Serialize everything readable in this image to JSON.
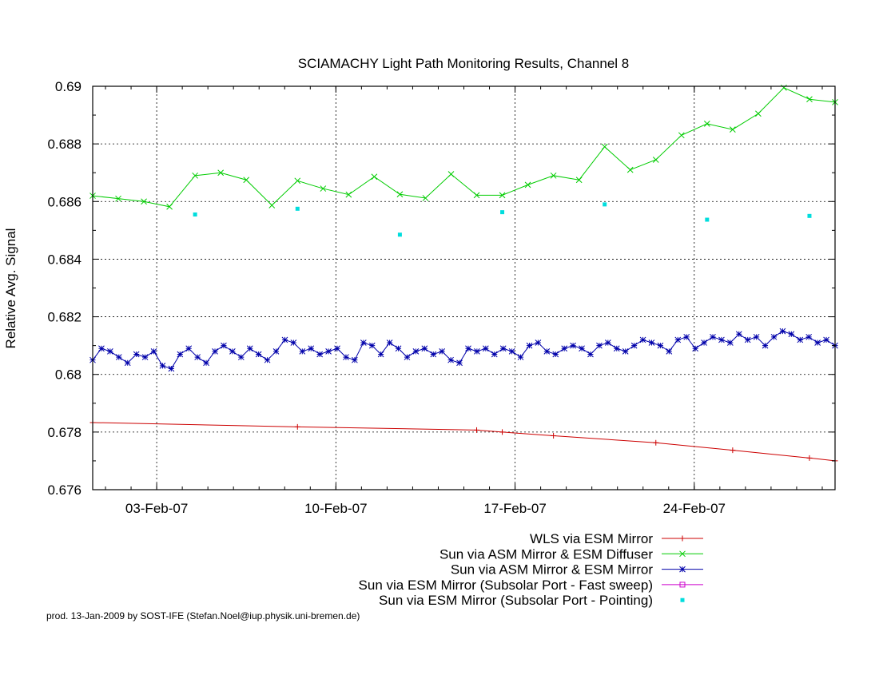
{
  "chart_data": {
    "type": "line",
    "title": "SCIAMACHY Light Path Monitoring Results, Channel 8",
    "xlabel": "",
    "ylabel": "Relative Avg. Signal",
    "xlim": [
      "2007-01-31T12:00",
      "2007-03-01T12:00"
    ],
    "ylim": [
      0.676,
      0.69
    ],
    "grid": true,
    "legend_position": "bottom-right, below plot",
    "x_ticks": [
      {
        "date": "2007-02-03",
        "label": "03-Feb-07"
      },
      {
        "date": "2007-02-10",
        "label": "10-Feb-07"
      },
      {
        "date": "2007-02-17",
        "label": "17-Feb-07"
      },
      {
        "date": "2007-02-24",
        "label": "24-Feb-07"
      }
    ],
    "y_ticks": [
      {
        "value": 0.676,
        "label": "0.676"
      },
      {
        "value": 0.678,
        "label": "0.678"
      },
      {
        "value": 0.68,
        "label": "0.68"
      },
      {
        "value": 0.682,
        "label": "0.682"
      },
      {
        "value": 0.684,
        "label": "0.684"
      },
      {
        "value": 0.686,
        "label": "0.686"
      },
      {
        "value": 0.688,
        "label": "0.688"
      },
      {
        "value": 0.69,
        "label": "0.69"
      }
    ],
    "series": [
      {
        "name": "WLS via ESM Mirror",
        "color": "#cc0000",
        "marker": "plus",
        "points": [
          [
            "2007-01-31T12:00",
            0.67833
          ],
          [
            "2007-02-08T12:00",
            0.67818
          ],
          [
            "2007-02-15T12:00",
            0.67807
          ],
          [
            "2007-02-16T12:00",
            0.678
          ],
          [
            "2007-02-18T12:00",
            0.67787
          ],
          [
            "2007-02-22T12:00",
            0.67763
          ],
          [
            "2007-02-25T12:00",
            0.67737
          ],
          [
            "2007-02-28T12:00",
            0.6771
          ],
          [
            "2007-03-01T12:00",
            0.677
          ]
        ]
      },
      {
        "name": "Sun via ASM Mirror & ESM Diffuser",
        "color": "#00cc00",
        "marker": "cross",
        "points": [
          [
            "2007-01-31T12:00",
            0.6862
          ],
          [
            "2007-02-01T12:00",
            0.6861
          ],
          [
            "2007-02-02T12:00",
            0.686
          ],
          [
            "2007-02-03T12:00",
            0.68582
          ],
          [
            "2007-02-04T12:00",
            0.6869
          ],
          [
            "2007-02-05T12:00",
            0.687
          ],
          [
            "2007-02-06T12:00",
            0.68675
          ],
          [
            "2007-02-07T12:00",
            0.68587
          ],
          [
            "2007-02-08T12:00",
            0.68672
          ],
          [
            "2007-02-09T12:00",
            0.68645
          ],
          [
            "2007-02-10T12:00",
            0.68624
          ],
          [
            "2007-02-11T12:00",
            0.68686
          ],
          [
            "2007-02-12T12:00",
            0.68625
          ],
          [
            "2007-02-13T12:00",
            0.68612
          ],
          [
            "2007-02-14T12:00",
            0.68695
          ],
          [
            "2007-02-15T12:00",
            0.68622
          ],
          [
            "2007-02-16T12:00",
            0.68622
          ],
          [
            "2007-02-17T12:00",
            0.68658
          ],
          [
            "2007-02-18T12:00",
            0.6869
          ],
          [
            "2007-02-19T12:00",
            0.68675
          ],
          [
            "2007-02-20T12:00",
            0.6879
          ],
          [
            "2007-02-21T12:00",
            0.6871
          ],
          [
            "2007-02-22T12:00",
            0.68745
          ],
          [
            "2007-02-23T12:00",
            0.6883
          ],
          [
            "2007-02-24T12:00",
            0.6887
          ],
          [
            "2007-02-25T12:00",
            0.6885
          ],
          [
            "2007-02-26T12:00",
            0.68905
          ],
          [
            "2007-02-27T12:00",
            0.68995
          ],
          [
            "2007-02-28T12:00",
            0.68955
          ],
          [
            "2007-03-01T12:00",
            0.68945
          ]
        ]
      },
      {
        "name": "Sun via ASM Mirror & ESM Mirror",
        "color": "#0000aa",
        "marker": "star",
        "x_start": "2007-01-31T12:00",
        "x_end": "2007-03-01T12:00",
        "values": [
          0.6805,
          0.6809,
          0.6808,
          0.6806,
          0.6804,
          0.6807,
          0.6806,
          0.6808,
          0.6803,
          0.6802,
          0.6807,
          0.6809,
          0.6806,
          0.6804,
          0.6808,
          0.681,
          0.6808,
          0.6806,
          0.6809,
          0.6807,
          0.6805,
          0.6808,
          0.6812,
          0.6811,
          0.6808,
          0.6809,
          0.6807,
          0.6808,
          0.6809,
          0.6806,
          0.6805,
          0.6811,
          0.681,
          0.6807,
          0.6811,
          0.6809,
          0.6806,
          0.6808,
          0.6809,
          0.6807,
          0.6808,
          0.6805,
          0.6804,
          0.6809,
          0.6808,
          0.6809,
          0.6807,
          0.6809,
          0.6808,
          0.6806,
          0.681,
          0.6811,
          0.6808,
          0.6807,
          0.6809,
          0.681,
          0.6809,
          0.6807,
          0.681,
          0.6811,
          0.6809,
          0.6808,
          0.681,
          0.6812,
          0.6811,
          0.681,
          0.6808,
          0.6812,
          0.6813,
          0.6809,
          0.6811,
          0.6813,
          0.6812,
          0.6811,
          0.6814,
          0.6812,
          0.6813,
          0.681,
          0.6813,
          0.6815,
          0.6814,
          0.6812,
          0.6813,
          0.6811,
          0.6812,
          0.681
        ]
      },
      {
        "name": "Sun via ESM Mirror (Subsolar Port - Fast sweep)",
        "color": "#cc00cc",
        "marker": "square",
        "points": []
      },
      {
        "name": "Sun via ESM Mirror (Subsolar Port - Pointing)",
        "color": "#00dddd",
        "marker": "dot",
        "points": [
          [
            "2007-02-04T12:00",
            0.68555
          ],
          [
            "2007-02-08T12:00",
            0.68575
          ],
          [
            "2007-02-12T12:00",
            0.68485
          ],
          [
            "2007-02-16T12:00",
            0.68563
          ],
          [
            "2007-02-20T12:00",
            0.6859
          ],
          [
            "2007-02-24T12:00",
            0.68537
          ],
          [
            "2007-02-28T12:00",
            0.6855
          ]
        ]
      }
    ]
  },
  "footer": "prod. 13-Jan-2009 by SOST-IFE (Stefan.Noel@iup.physik.uni-bremen.de)"
}
